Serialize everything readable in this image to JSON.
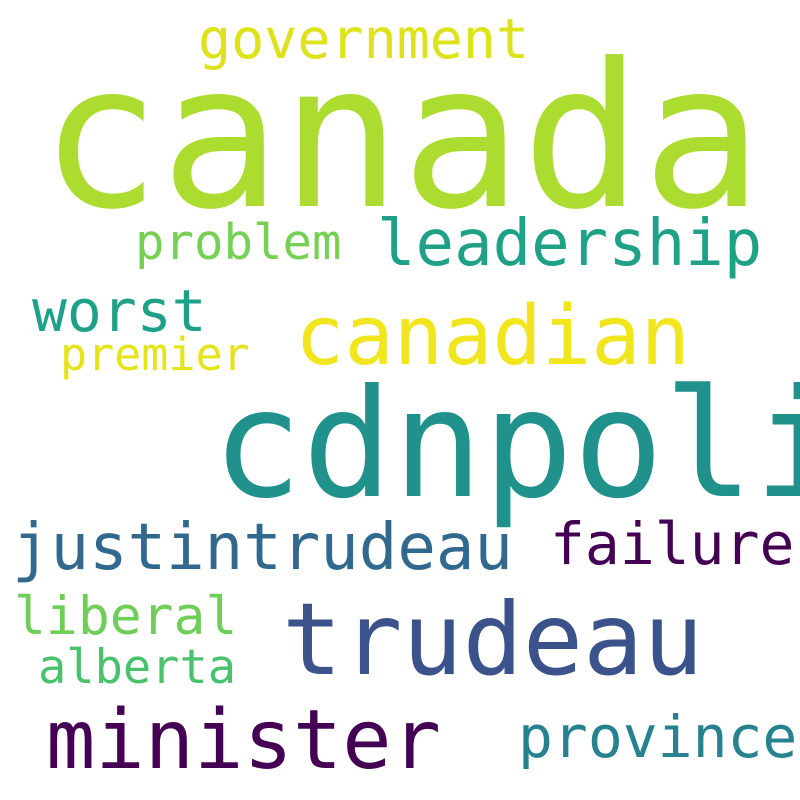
{
  "words": [
    {
      "text": "canada",
      "color": "#addc30",
      "key": "canada"
    },
    {
      "text": "cdnpoli",
      "color": "#21918c",
      "key": "cdnpoli"
    },
    {
      "text": "trudeau",
      "color": "#3b528b",
      "key": "trudeau"
    },
    {
      "text": "canadian",
      "color": "#f1e51d",
      "key": "canadian"
    },
    {
      "text": "minister",
      "color": "#440154",
      "key": "minister"
    },
    {
      "text": "leadership",
      "color": "#1fa188",
      "key": "leadership"
    },
    {
      "text": "justintrudeau",
      "color": "#31688e",
      "key": "justintrudeau"
    },
    {
      "text": "government",
      "color": "#dde318",
      "key": "government"
    },
    {
      "text": "failure",
      "color": "#440154",
      "key": "failure"
    },
    {
      "text": "province",
      "color": "#26828e",
      "key": "province"
    },
    {
      "text": "worst",
      "color": "#1fa088",
      "key": "worst"
    },
    {
      "text": "problem",
      "color": "#75d054",
      "key": "problem"
    },
    {
      "text": "liberal",
      "color": "#6ece58",
      "key": "liberal"
    },
    {
      "text": "alberta",
      "color": "#4ac16d",
      "key": "alberta"
    },
    {
      "text": "premier",
      "color": "#e5e419",
      "key": "premier"
    }
  ]
}
